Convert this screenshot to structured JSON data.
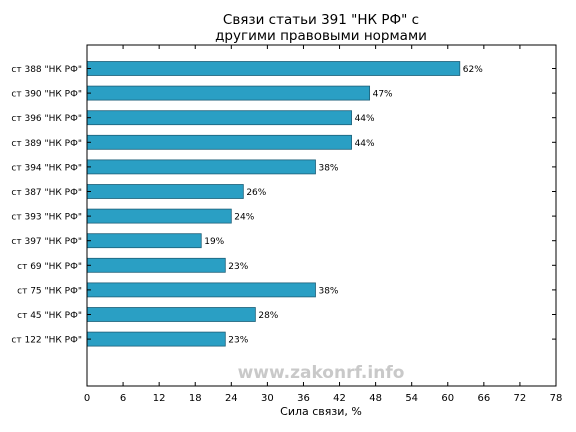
{
  "chart_data": {
    "type": "bar",
    "orientation": "horizontal",
    "title_lines": [
      "Связи статьи 391 \"НК РФ\" с",
      "другими правовыми нормами"
    ],
    "xlabel": "Сила связи, %",
    "categories": [
      "ст 388 \"НК РФ\"",
      "ст 390 \"НК РФ\"",
      "ст 396 \"НК РФ\"",
      "ст 389 \"НК РФ\"",
      "ст 394 \"НК РФ\"",
      "ст 387 \"НК РФ\"",
      "ст 393 \"НК РФ\"",
      "ст 397 \"НК РФ\"",
      "ст 69 \"НК РФ\"",
      "ст 75 \"НК РФ\"",
      "ст 45 \"НК РФ\"",
      "ст 122 \"НК РФ\""
    ],
    "values": [
      62,
      47,
      44,
      44,
      38,
      26,
      24,
      19,
      23,
      38,
      28,
      23
    ],
    "value_labels": [
      "62%",
      "47%",
      "44%",
      "44%",
      "38%",
      "26%",
      "24%",
      "19%",
      "23%",
      "38%",
      "28%",
      "23%"
    ],
    "xlim": [
      0,
      78
    ],
    "xticks": [
      "0",
      "6",
      "12",
      "18",
      "24",
      "30",
      "36",
      "42",
      "48",
      "54",
      "60",
      "66",
      "72",
      "78"
    ],
    "bar_color": "#2a9fc4",
    "bar_edge_color": "#1d5f78",
    "grid": false
  },
  "watermark": "www.zakonrf.info"
}
